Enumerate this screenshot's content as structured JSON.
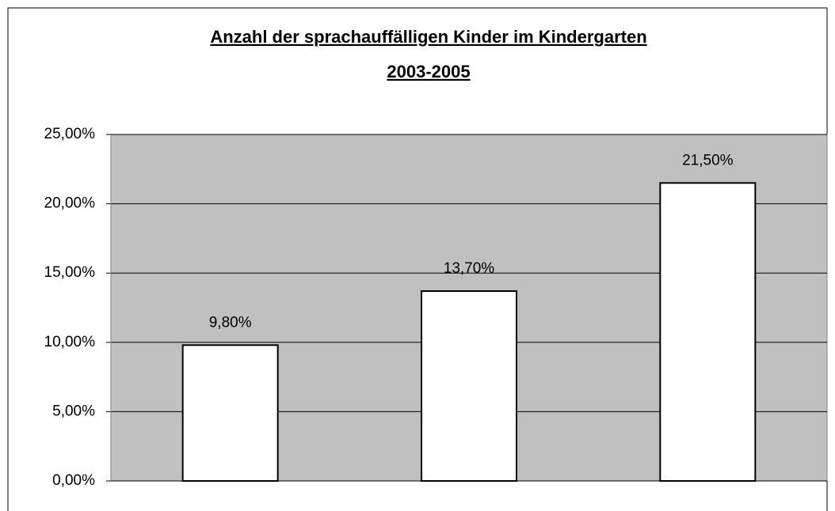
{
  "chart_data": {
    "type": "bar",
    "title": [
      "Anzahl der sprachauffälligen Kinder im Kindergarten",
      "2003-2005"
    ],
    "categories": [
      null,
      null,
      null
    ],
    "values": [
      9.8,
      13.7,
      21.5
    ],
    "value_labels": [
      "9,80%",
      "13,70%",
      "21,50%"
    ],
    "color": "#ffffff",
    "plot_color": "#c0c0c0",
    "ylim": [
      0,
      25
    ],
    "yticks": [
      {
        "value": 0,
        "label": "0,00%"
      },
      {
        "value": 5,
        "label": "5,00%"
      },
      {
        "value": 10,
        "label": "10,00%"
      },
      {
        "value": 15,
        "label": "15,00%"
      },
      {
        "value": 20,
        "label": "20,00%"
      },
      {
        "value": 25,
        "label": "25,00%"
      }
    ],
    "grid": true
  }
}
